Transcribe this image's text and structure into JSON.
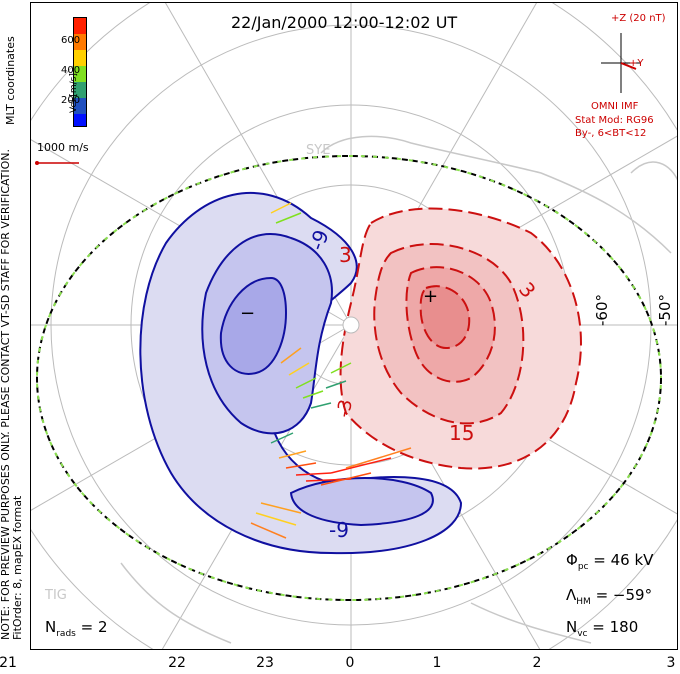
{
  "title": "22/Jan/2000 12:00-12:02 UT",
  "side_note_line1": "NOTE: FOR PREVIEW PURPOSES ONLY. PLEASE CONTACT VT-SD STAFF FOR VERIFICATION.",
  "side_note_line2": "FitOrder: 8, mapEX format",
  "coord_label": "MLT coordinates",
  "colorbar": {
    "label": "Vel [m/s]",
    "ticks": [
      "600",
      "400",
      "200"
    ],
    "colors": [
      "#ff2000",
      "#ff7a00",
      "#ffd000",
      "#80e020",
      "#30a070",
      "#2050c0",
      "#0010ff"
    ]
  },
  "velocity_scale": "1000 m/s",
  "imf": {
    "z_label": "+Z (20 nT)",
    "y_label": "+Y",
    "source": "OMNI IMF",
    "model_line1": "Stat Mod: RG96",
    "model_line2": "By-, 6<BT<12"
  },
  "lat_labels": [
    "-60°",
    "-50°"
  ],
  "station_labels": [
    "SYE",
    "TIG"
  ],
  "contour_labels": [
    "-9",
    "-9",
    "3",
    "3",
    "-3",
    "15"
  ],
  "extrema_marks": [
    "−",
    "+"
  ],
  "mlt_ticks": [
    "21",
    "22",
    "23",
    "0",
    "1",
    "2",
    "3"
  ],
  "stats": {
    "n_rads_label": "N",
    "n_rads_sub": "rads",
    "n_rads_value": "= 2",
    "phi_label": "Φ",
    "phi_sub": "pc",
    "phi_value": "= 46 kV",
    "lambda_label": "Λ",
    "lambda_sub": "HM",
    "lambda_value": "= −59°",
    "nvc_label": "N",
    "nvc_sub": "vc",
    "nvc_value": "= 180"
  }
}
